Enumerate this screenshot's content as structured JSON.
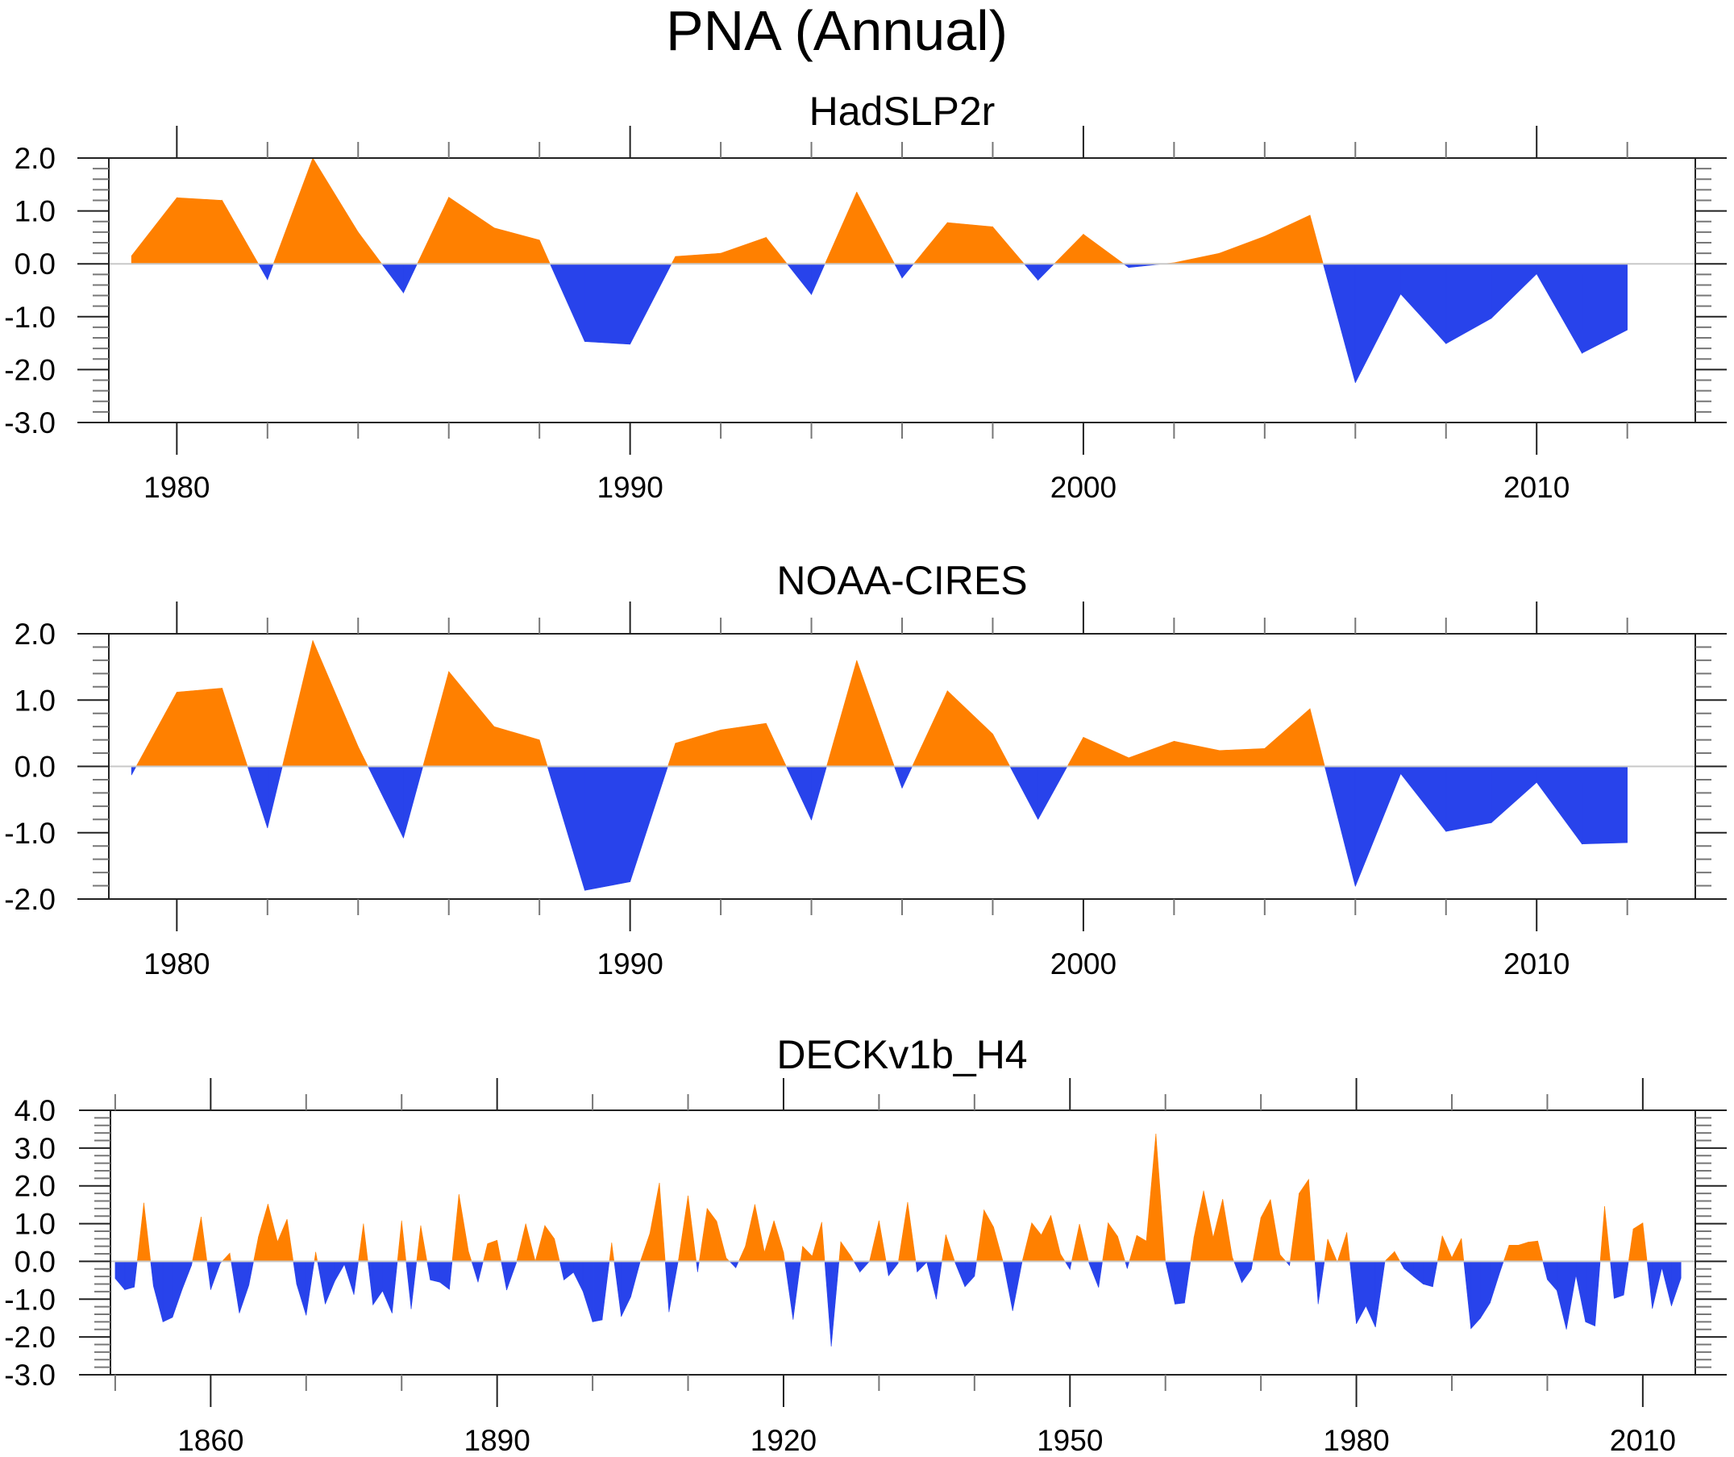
{
  "colors": {
    "positive": "#ff8000",
    "negative": "#2843eb",
    "zero_line": "#c8c8c8",
    "frame": "#222222"
  },
  "chart_data": {
    "type": "area",
    "title": "PNA (Annual)",
    "panels": [
      {
        "title": "HadSLP2r",
        "xlabel": "",
        "ylabel": "",
        "xlim": [
          1978.5,
          2013.5
        ],
        "ylim": [
          -3.0,
          2.0
        ],
        "grid": false,
        "legend": "none",
        "x_major_ticks": [
          1980,
          1990,
          2000,
          2010
        ],
        "x_tick_labels": [
          "1980",
          "1990",
          "2000",
          "2010"
        ],
        "x_minor_step": 2,
        "y_major_ticks": [
          2.0,
          1.0,
          0.0,
          -1.0,
          -2.0,
          -3.0
        ],
        "y_tick_labels": [
          "2.0",
          "1.0",
          "0.0",
          "-1.0",
          "-2.0",
          "-3.0"
        ],
        "y_minor_step": 0.2,
        "x": [
          1979,
          1980,
          1981,
          1982,
          1983,
          1984,
          1985,
          1986,
          1987,
          1988,
          1989,
          1990,
          1991,
          1992,
          1993,
          1994,
          1995,
          1996,
          1997,
          1998,
          1999,
          2000,
          2001,
          2002,
          2003,
          2004,
          2005,
          2006,
          2007,
          2008,
          2009,
          2010,
          2011,
          2012
        ],
        "values": [
          0.15,
          1.25,
          1.2,
          -0.3,
          2.0,
          0.6,
          -0.55,
          1.26,
          0.68,
          0.45,
          -1.47,
          -1.52,
          0.14,
          0.2,
          0.5,
          -0.58,
          1.36,
          -0.27,
          0.78,
          0.7,
          -0.31,
          0.56,
          -0.07,
          0.02,
          0.2,
          0.52,
          0.92,
          -2.25,
          -0.57,
          -1.51,
          -1.03,
          -0.19,
          -1.69,
          -1.25
        ]
      },
      {
        "title": "NOAA-CIRES",
        "xlabel": "",
        "ylabel": "",
        "xlim": [
          1978.5,
          2013.5
        ],
        "ylim": [
          -2.0,
          2.0
        ],
        "grid": false,
        "legend": "none",
        "x_major_ticks": [
          1980,
          1990,
          2000,
          2010
        ],
        "x_tick_labels": [
          "1980",
          "1990",
          "2000",
          "2010"
        ],
        "x_minor_step": 2,
        "y_major_ticks": [
          2.0,
          1.0,
          0.0,
          -1.0,
          -2.0
        ],
        "y_tick_labels": [
          "2.0",
          "1.0",
          "0.0",
          "-1.0",
          "-2.0"
        ],
        "y_minor_step": 0.2,
        "x": [
          1979,
          1980,
          1981,
          1982,
          1983,
          1984,
          1985,
          1986,
          1987,
          1988,
          1989,
          1990,
          1991,
          1992,
          1993,
          1994,
          1995,
          1996,
          1997,
          1998,
          1999,
          2000,
          2001,
          2002,
          2003,
          2004,
          2005,
          2006,
          2007,
          2008,
          2009,
          2010,
          2011,
          2012
        ],
        "values": [
          -0.13,
          1.12,
          1.18,
          -0.93,
          1.9,
          0.3,
          -1.08,
          1.43,
          0.6,
          0.4,
          -1.87,
          -1.74,
          0.35,
          0.55,
          0.65,
          -0.81,
          1.6,
          -0.33,
          1.14,
          0.49,
          -0.8,
          0.44,
          0.13,
          0.38,
          0.24,
          0.27,
          0.87,
          -1.81,
          -0.11,
          -0.98,
          -0.85,
          -0.24,
          -1.17,
          -1.15
        ]
      },
      {
        "title": "DECKv1b_H4",
        "xlabel": "",
        "ylabel": "",
        "xlim": [
          1849.5,
          2015.5
        ],
        "ylim": [
          -3.0,
          4.0
        ],
        "grid": false,
        "legend": "none",
        "x_major_ticks": [
          1860,
          1890,
          1920,
          1950,
          1980,
          2010
        ],
        "x_tick_labels": [
          "1860",
          "1890",
          "1920",
          "1950",
          "1980",
          "2010"
        ],
        "x_minor_step": 10,
        "y_major_ticks": [
          4.0,
          3.0,
          2.0,
          1.0,
          0.0,
          -1.0,
          -2.0,
          -3.0
        ],
        "y_tick_labels": [
          "4.0",
          "3.0",
          "2.0",
          "1.0",
          "0.0",
          "-1.0",
          "-2.0",
          "-3.0"
        ],
        "y_minor_step": 0.2,
        "x_start": 1850,
        "x_step": 1,
        "values": [
          -0.45,
          -0.75,
          -0.68,
          1.55,
          -0.65,
          -1.6,
          -1.48,
          -0.75,
          -0.1,
          1.18,
          -0.75,
          -0.05,
          0.22,
          -1.37,
          -0.63,
          0.65,
          1.52,
          0.52,
          1.12,
          -0.6,
          -1.43,
          0.25,
          -1.13,
          -0.52,
          -0.08,
          -0.88,
          1.0,
          -1.15,
          -0.78,
          -1.37,
          1.08,
          -1.26,
          0.95,
          -0.49,
          -0.55,
          -0.74,
          1.78,
          0.27,
          -0.55,
          0.47,
          0.56,
          -0.76,
          -0.05,
          1.0,
          0.0,
          0.95,
          0.6,
          -0.49,
          -0.29,
          -0.8,
          -1.6,
          -1.55,
          0.5,
          -1.46,
          -0.94,
          0.0,
          0.74,
          2.08,
          -1.34,
          0.05,
          1.74,
          -0.28,
          1.4,
          1.06,
          0.09,
          -0.17,
          0.4,
          1.51,
          0.24,
          1.08,
          0.24,
          -1.54,
          0.4,
          0.14,
          1.04,
          -2.25,
          0.52,
          0.16,
          -0.28,
          0.0,
          1.08,
          -0.38,
          -0.05,
          1.57,
          -0.28,
          -0.02,
          -1.0,
          0.71,
          -0.05,
          -0.67,
          -0.39,
          1.36,
          0.91,
          -0.01,
          -1.31,
          0.0,
          1.02,
          0.7,
          1.22,
          0.2,
          -0.21,
          0.99,
          -0.05,
          -0.69,
          1.02,
          0.66,
          -0.19,
          0.69,
          0.54,
          3.38,
          0.0,
          -1.13,
          -1.1,
          0.65,
          1.87,
          0.63,
          1.65,
          0.12,
          -0.56,
          -0.21,
          1.16,
          1.64,
          0.18,
          -0.11,
          1.8,
          2.17,
          -1.13,
          0.59,
          -0.02,
          0.77,
          -1.65,
          -1.18,
          -1.74,
          0.01,
          0.26,
          -0.19,
          -0.4,
          -0.6,
          -0.67,
          0.68,
          0.1,
          0.61,
          -1.78,
          -1.5,
          -1.1,
          -0.31,
          0.43,
          0.43,
          0.51,
          0.54,
          -0.48,
          -0.77,
          -1.8,
          -0.36,
          -1.6,
          -1.71,
          1.46,
          -0.98,
          -0.89,
          0.86,
          1.02,
          -1.25,
          -0.17,
          -1.18,
          -0.44
        ]
      }
    ]
  }
}
